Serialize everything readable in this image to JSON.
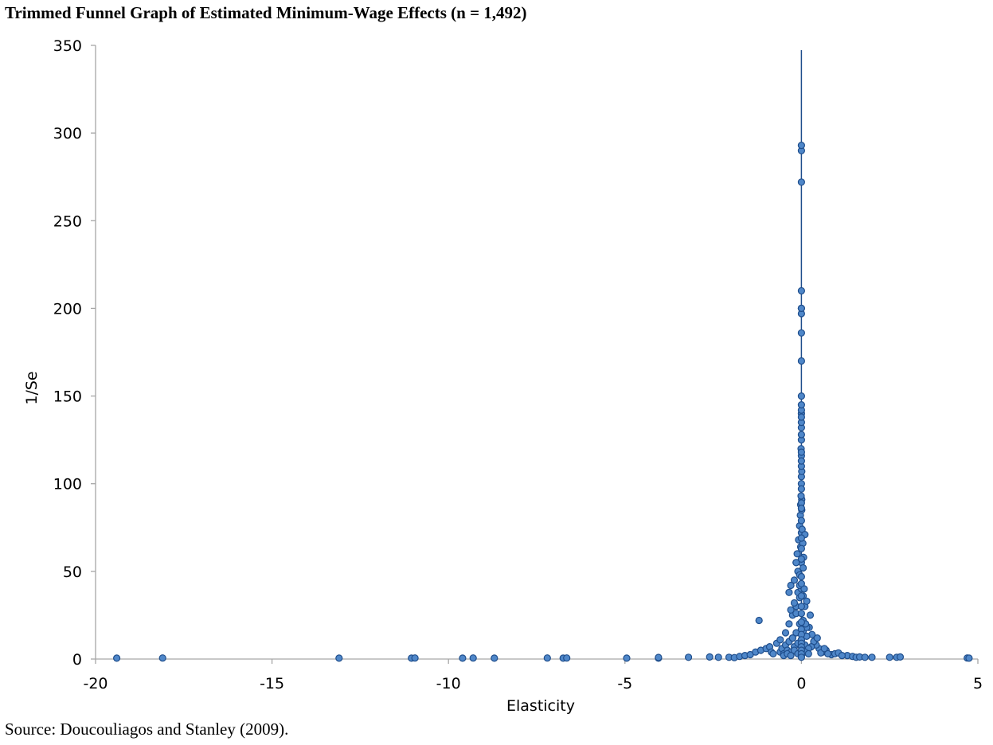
{
  "chart_data": {
    "type": "scatter",
    "title": "Trimmed Funnel Graph of Estimated Minimum-Wage Effects (n = 1,492)",
    "source": "Source: Doucouliagos and Stanley (2009).",
    "xlabel": "Elasticity",
    "ylabel": "1/Se",
    "xlim": [
      -20,
      5
    ],
    "ylim": [
      0,
      350
    ],
    "xticks": [
      -20,
      -15,
      -10,
      -5,
      0,
      5
    ],
    "xtick_labels": [
      "-20",
      "-15",
      "-10",
      "-5",
      "0",
      "5"
    ],
    "yticks": [
      0,
      50,
      100,
      150,
      200,
      250,
      300,
      350
    ],
    "ytick_labels": [
      "0",
      "50",
      "100",
      "150",
      "200",
      "250",
      "300",
      "350"
    ],
    "grid": false,
    "reference_line_x": 0,
    "colors": {
      "marker_fill": "#4f87c9",
      "marker_stroke": "#1f4e8c",
      "reference_line": "#1f4e8c",
      "axis": "#a6a6a6"
    },
    "series": [
      {
        "x": [
          -19.4,
          -18.1,
          -13.1,
          -11.05,
          -10.95,
          -9.6,
          -9.3,
          -8.7,
          -7.2,
          -6.75,
          -6.65,
          -4.95,
          -4.05,
          -4.05,
          -3.2,
          -2.6,
          -2.35,
          -2.05,
          -1.9,
          -1.75,
          -1.6,
          -1.45,
          -1.3,
          -1.15,
          -1.0,
          -0.9,
          -0.85,
          -0.8,
          -0.7,
          2.5,
          2.7,
          2.8,
          4.7,
          4.75,
          1.3,
          1.45,
          1.55,
          1.65,
          1.8,
          2.0,
          0.85,
          0.95,
          1.05,
          1.15,
          0.6,
          0.7,
          0.75,
          0.5,
          0.55,
          0.42,
          0.35,
          0.3,
          0.28,
          0.22,
          0.45,
          0.65,
          0.25,
          -0.6,
          -0.55,
          -0.5,
          -0.45,
          -0.4,
          -0.35,
          -0.3,
          -0.25,
          -0.2,
          -0.15,
          -0.1,
          -0.05,
          0.0,
          0.05,
          0.1,
          0.15,
          0.2,
          -0.5,
          -0.4,
          -0.3,
          -0.2,
          -0.1,
          0.0,
          0.1,
          0.2,
          -0.45,
          -0.35,
          -0.25,
          -0.15,
          -0.05,
          0.05,
          0.15,
          -0.3,
          -0.2,
          -0.1,
          0.0,
          0.1,
          -0.25,
          -0.15,
          -0.05,
          0.05,
          0.12,
          -0.2,
          -0.1,
          0.0,
          0.08,
          -0.15,
          -0.05,
          0.05,
          -0.12,
          -0.02,
          0.06,
          -0.08,
          0.0,
          0.04,
          -0.05,
          0.02,
          -0.03,
          0.01,
          -0.02,
          0.01,
          -0.01,
          0.0,
          0.0,
          0.01,
          0.0,
          0.0,
          -0.01,
          0.0,
          0.0,
          0.0,
          -1.2,
          -0.35,
          -0.3,
          -0.15,
          0.1,
          0.15,
          -0.6,
          0.0,
          0.0,
          0.0,
          0.0,
          0.0,
          0.0,
          0.0,
          0.0,
          0.0,
          0.0,
          0.0,
          0.0,
          0.0,
          0.0,
          0.0,
          0.0,
          0.0,
          0.0,
          0.0,
          0.0,
          0.0,
          0.0,
          0.0,
          0.0,
          0.0,
          0.0,
          0.0,
          0.0,
          0.0,
          0.0,
          0.0,
          0.0,
          0.0,
          0.0,
          0.0,
          0.0,
          0.0,
          0.0
        ],
        "y": [
          0.5,
          0.6,
          0.5,
          0.5,
          0.6,
          0.5,
          0.6,
          0.5,
          0.6,
          0.5,
          0.6,
          0.5,
          0.5,
          0.9,
          1.0,
          1.2,
          1.0,
          1.0,
          0.8,
          1.5,
          2.0,
          2.5,
          4.0,
          5.0,
          6.0,
          7.0,
          4.0,
          3.0,
          9.0,
          1.0,
          1.0,
          1.2,
          0.6,
          0.5,
          2.0,
          1.5,
          1.0,
          1.2,
          1.0,
          1.0,
          2.5,
          3.0,
          3.5,
          2.0,
          4.0,
          5.0,
          3.0,
          6.0,
          3.5,
          8.0,
          10.0,
          14.0,
          7.0,
          18.0,
          12.0,
          6.0,
          25.0,
          4.0,
          6.0,
          3.0,
          8.0,
          5.0,
          10.0,
          4.0,
          12.0,
          7.0,
          15.0,
          9.0,
          20.0,
          11.0,
          16.0,
          8.0,
          13.0,
          6.0,
          2.0,
          3.0,
          2.0,
          5.0,
          3.0,
          2.0,
          4.0,
          3.0,
          15.0,
          20.0,
          25.0,
          30.0,
          35.0,
          22.0,
          18.0,
          28.0,
          32.0,
          38.0,
          40.0,
          30.0,
          12.0,
          26.0,
          42.0,
          36.0,
          20.0,
          45.0,
          50.0,
          55.0,
          40.0,
          55.0,
          48.0,
          52.0,
          60.0,
          64.0,
          58.0,
          68.0,
          72.0,
          66.0,
          76.0,
          74.0,
          82.0,
          85.0,
          88.0,
          91.0,
          93.0,
          100.0,
          104.0,
          107.0,
          110.0,
          116.0,
          120.0,
          125.0,
          132.0,
          135.0,
          22.0,
          38.0,
          42.0,
          55.0,
          71.0,
          33.0,
          11.0,
          140.0,
          138.0,
          142.0,
          145.0,
          150.0,
          170.0,
          186.0,
          197.0,
          200.0,
          200.0,
          210.0,
          272.0,
          290.0,
          293.0,
          128.0,
          118.0,
          113.0,
          97.0,
          89.0,
          86.0,
          79.0,
          69.0,
          63.0,
          57.0,
          47.0,
          43.0,
          36.0,
          30.0,
          26.0,
          21.0,
          17.0,
          14.0,
          11.0,
          9.0,
          7.0,
          5.0,
          3.0,
          1.0
        ]
      }
    ]
  }
}
